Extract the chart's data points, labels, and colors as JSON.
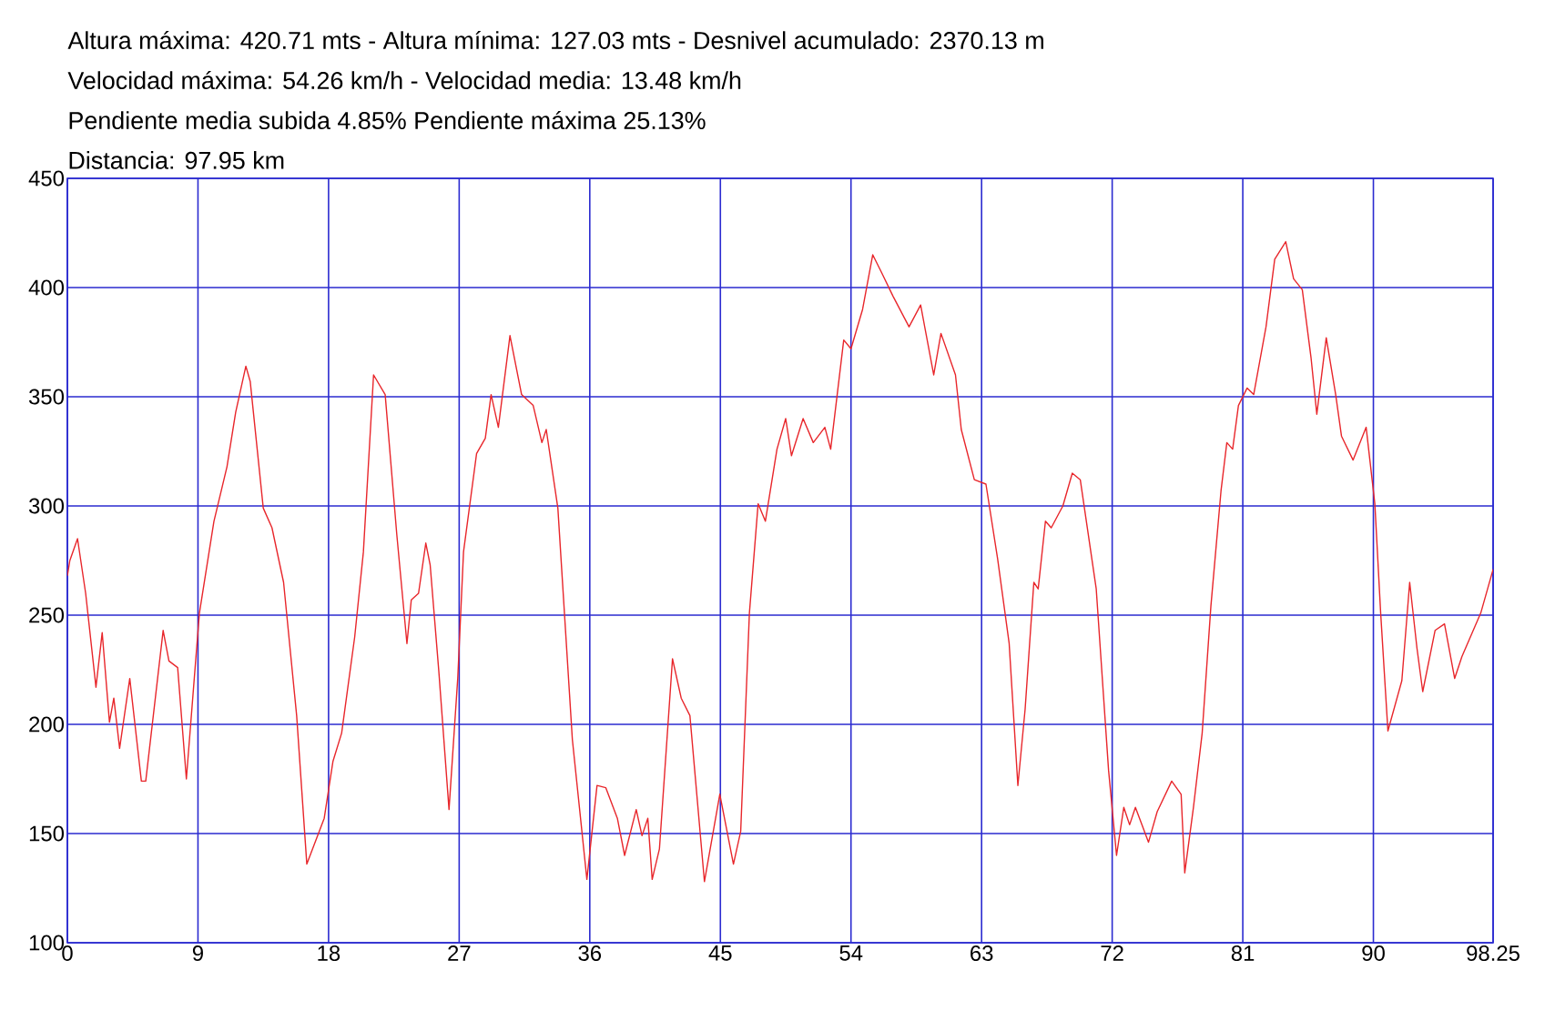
{
  "chart_data": {
    "type": "line",
    "title": "Altura máxima: 420.71 mts - Altura mínima: 127.03 mts - Desnivel acumulado: 2370.13 m",
    "subtitle": "Velocidad máxima: 54.26 km/h - Velocidad media: 13.48 km/h",
    "annotations": [
      "Pendiente media subida 4.85% Pendiente máxima 25.13%",
      "Distancia: 97.95 km"
    ],
    "x": [
      0,
      0.17,
      0.7,
      1.26,
      1.97,
      2.4,
      2.9,
      3.2,
      3.6,
      4.3,
      5.1,
      5.4,
      6.6,
      7.0,
      7.6,
      8.2,
      9.1,
      10.1,
      11.0,
      11.6,
      12.3,
      12.6,
      13.5,
      14.1,
      14.9,
      15.8,
      16.5,
      17.7,
      18.3,
      18.9,
      19.8,
      20.4,
      21.1,
      21.9,
      22.7,
      23.4,
      23.7,
      24.2,
      24.7,
      25.0,
      25.6,
      26.3,
      26.9,
      27.3,
      28.2,
      28.8,
      29.2,
      29.7,
      30.5,
      31.3,
      32.1,
      32.7,
      33.0,
      33.8,
      34.8,
      35.8,
      36.5,
      37.1,
      37.9,
      38.4,
      39.2,
      39.6,
      40.0,
      40.3,
      40.8,
      41.7,
      42.3,
      42.9,
      43.9,
      44.96,
      45.9,
      46.4,
      47.0,
      47.6,
      48.1,
      48.9,
      49.5,
      49.9,
      50.7,
      51.4,
      52.2,
      52.6,
      53.5,
      54.0,
      54.8,
      55.5,
      56.1,
      56.9,
      58.0,
      58.8,
      59.7,
      60.2,
      61.2,
      61.6,
      62.5,
      63.3,
      64.1,
      64.9,
      65.5,
      66.0,
      66.6,
      66.9,
      67.4,
      67.8,
      68.6,
      69.25,
      69.8,
      70.9,
      71.75,
      72.3,
      72.8,
      73.2,
      73.6,
      74.5,
      75.1,
      76.1,
      76.75,
      77.0,
      77.6,
      78.2,
      78.8,
      79.5,
      79.9,
      80.3,
      80.7,
      81.3,
      81.75,
      82.6,
      83.2,
      83.96,
      84.5,
      85.1,
      85.7,
      86.1,
      86.75,
      87.4,
      87.8,
      88.6,
      89.5,
      90.1,
      90.5,
      91.0,
      91.96,
      92.5,
      93.0,
      93.4,
      94.25,
      94.9,
      95.6,
      96.1,
      97.4,
      98.25
    ],
    "series": [
      {
        "color": "#e8262b",
        "values": [
          268,
          275,
          285,
          260,
          217,
          242,
          201,
          212,
          189,
          221,
          174,
          174,
          243,
          229,
          226,
          175,
          251,
          293,
          318,
          343,
          364,
          357,
          299,
          290,
          265,
          204,
          136,
          157,
          183,
          196,
          240,
          279,
          360,
          351,
          287,
          237,
          257,
          260,
          283,
          273,
          224,
          161,
          221,
          279,
          324,
          331,
          351,
          336,
          378,
          351,
          346,
          329,
          335,
          299,
          193,
          129,
          172,
          171,
          157,
          140,
          161,
          149,
          157,
          129,
          143,
          230,
          212,
          204,
          128,
          168,
          136,
          151,
          251,
          301,
          293,
          326,
          340,
          323,
          340,
          329,
          336,
          326,
          376,
          372,
          390,
          415,
          407,
          396,
          382,
          392,
          360,
          379,
          360,
          335,
          312,
          310,
          276,
          237,
          172,
          207,
          265,
          262,
          293,
          290,
          300,
          315,
          312,
          262,
          179,
          140,
          162,
          154,
          162,
          146,
          160,
          174,
          168,
          132,
          162,
          196,
          254,
          307,
          329,
          326,
          346,
          354,
          351,
          382,
          413,
          421,
          404,
          399,
          368,
          342,
          377,
          351,
          332,
          321,
          336,
          301,
          251,
          197,
          220,
          265,
          235,
          215,
          243,
          246,
          221,
          231,
          251,
          271
        ]
      }
    ],
    "xlim": [
      0,
      98.25
    ],
    "xticks": [
      0,
      9,
      18,
      27,
      36,
      45,
      54,
      63,
      72,
      81,
      90,
      98.25
    ],
    "ylim": [
      100,
      450
    ],
    "yticks": [
      100,
      150,
      200,
      250,
      300,
      350,
      400,
      450
    ],
    "grid": true
  }
}
